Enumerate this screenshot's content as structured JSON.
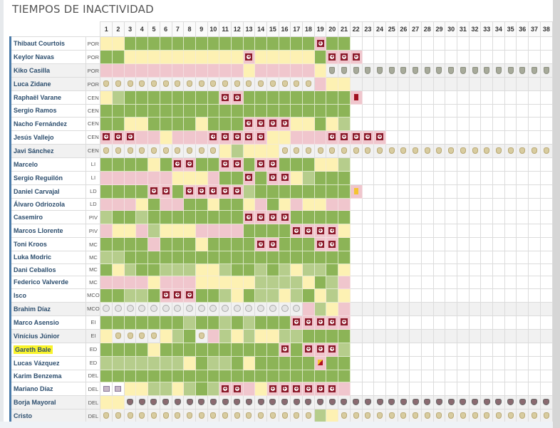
{
  "title": "TIEMPOS DE INACTIVIDAD",
  "matchdays": [
    1,
    2,
    3,
    4,
    5,
    6,
    7,
    8,
    9,
    10,
    11,
    12,
    13,
    14,
    15,
    16,
    17,
    18,
    19,
    20,
    21,
    22,
    23,
    24,
    25,
    26,
    27,
    28,
    29,
    30,
    31,
    32,
    33,
    34,
    35,
    36,
    37,
    38
  ],
  "legend_codes": {
    "G": "played-full",
    "g": "played-partial",
    "y": "bench",
    "p": "not-called-up",
    "i": "injury-icon",
    "R": "real-madrid-crest-icon",
    "S": "leganes-crest-icon",
    "B": "club-crest-icon",
    "V": "levante-crest-icon",
    "M": "lyon-crest-icon",
    "r": "red-card-icon",
    "a": "yellow-card-icon",
    "h": "second-yellow-icon",
    "w": "empty"
  },
  "colors": {
    "played_full": "#8cb457",
    "played_partial": "#b6cd8c",
    "bench": "#fdf1b3",
    "absent": "#f0c6cd",
    "injury": "#8b1a2a",
    "highlight": "#f9f32b"
  },
  "players": [
    {
      "name": "Thibaut Courtois",
      "pos": "POR",
      "cells": "yyGGGGGGGGGGGGGGGGiGG"
    },
    {
      "name": "Keylor Navas",
      "pos": "POR",
      "cells": "GGyyyyyyyyyyiyyyyyGiii"
    },
    {
      "name": "Kiko Casilla",
      "pos": "POR",
      "cells": "ppppppppppppypppppySSSSSSSSSSSSSSSSSSS"
    },
    {
      "name": "Luca Zidane",
      "pos": "POR",
      "cells": "RRRRRRRRRRRRRRRRRRpyy"
    },
    {
      "name": "Raphaël Varane",
      "pos": "CEN",
      "cells": "ygGGGGGGGGiiGGGGGGGGGr"
    },
    {
      "name": "Sergio Ramos",
      "pos": "CEN",
      "cells": "GGGGGGGGGGGGGGGGGGGGG"
    },
    {
      "name": "Nacho Fernández",
      "pos": "CEN",
      "cells": "GGyyGGGGyGGGiiiiyyGyg"
    },
    {
      "name": "Jesús Vallejo",
      "pos": "CEN",
      "cells": "iiippypppiiiiiyypppiiiii"
    },
    {
      "name": "Javi Sánchez",
      "pos": "CEN",
      "cells": "RRRRRRRRRRygyyyRRRRRRRRRRRRRRRRRRRRRRR"
    },
    {
      "name": "Marcelo",
      "pos": "LI",
      "cells": "GGGGyGiiGGiiGiiGGGyyg"
    },
    {
      "name": "Sergio Reguilón",
      "pos": "LI",
      "cells": "ppppppyyypGGiGiiygGGG"
    },
    {
      "name": "Daniel Carvajal",
      "pos": "LD",
      "cells": "GGGGiiGiiiiigGGGGGGGGa"
    },
    {
      "name": "Álvaro Odriozola",
      "pos": "LD",
      "cells": "pppyGppGGyGGypGypyypp"
    },
    {
      "name": "Casemiro",
      "pos": "PIV",
      "cells": "gGGgGGGGGGGGiiiiGGGGG"
    },
    {
      "name": "Marcos Llorente",
      "pos": "PIV",
      "cells": "pyypgyyyppppGGGGiiiiy"
    },
    {
      "name": "Toni Kroos",
      "pos": "MC",
      "cells": "GGGGpGGGyGGGGiiGGGiiG"
    },
    {
      "name": "Luka Modric",
      "pos": "MC",
      "cells": "ggGGGGGGGGGGGGGGGGGGG"
    },
    {
      "name": "Dani Ceballos",
      "pos": "MC",
      "cells": "GygGGgggyygGGgGgyggGy"
    },
    {
      "name": "Federico Valverde",
      "pos": "MC",
      "cells": "ppppypppyyyyyggggyGgp"
    },
    {
      "name": "Isco",
      "pos": "MCO",
      "cells": "GGggGiiiGGgyGggygGygy"
    },
    {
      "name": "Brahim Díaz",
      "pos": "MCO",
      "cells": "BBBBBBBBBBBBBBBBBpgyp"
    },
    {
      "name": "Marco Asensio",
      "pos": "EI",
      "cells": "GGGGGGGgGGgGgGGGiiiii"
    },
    {
      "name": "Vinícius Júnior",
      "pos": "EI",
      "cells": "yRRRRygGRpgygyyggGGGG"
    },
    {
      "name": "Gareth Bale",
      "pos": "ED",
      "cells": "GGGGyGGGGGGGGGGiGiiig",
      "highlighted": true
    },
    {
      "name": "Lucas Vázquez",
      "pos": "ED",
      "cells": "gggggggyGggGyGGGGGhGG"
    },
    {
      "name": "Karim Benzema",
      "pos": "DEL",
      "cells": "GGGGGGGGGGGGGGGGGGGGG"
    },
    {
      "name": "Mariano Díaz",
      "pos": "DEL",
      "cells": "MMyyggygGgiipyiiiiiip"
    },
    {
      "name": "Borja Mayoral",
      "pos": "DEL",
      "cells": "yyVVVVVVVVVVVVVVVVVVVVVVVVVVVVVVVVVVVV"
    },
    {
      "name": "Cristo",
      "pos": "DEL",
      "cells": "RRRRRRRRRRRRRRRRRRgyRRRRRRRRRRRRRRRRRR"
    }
  ]
}
